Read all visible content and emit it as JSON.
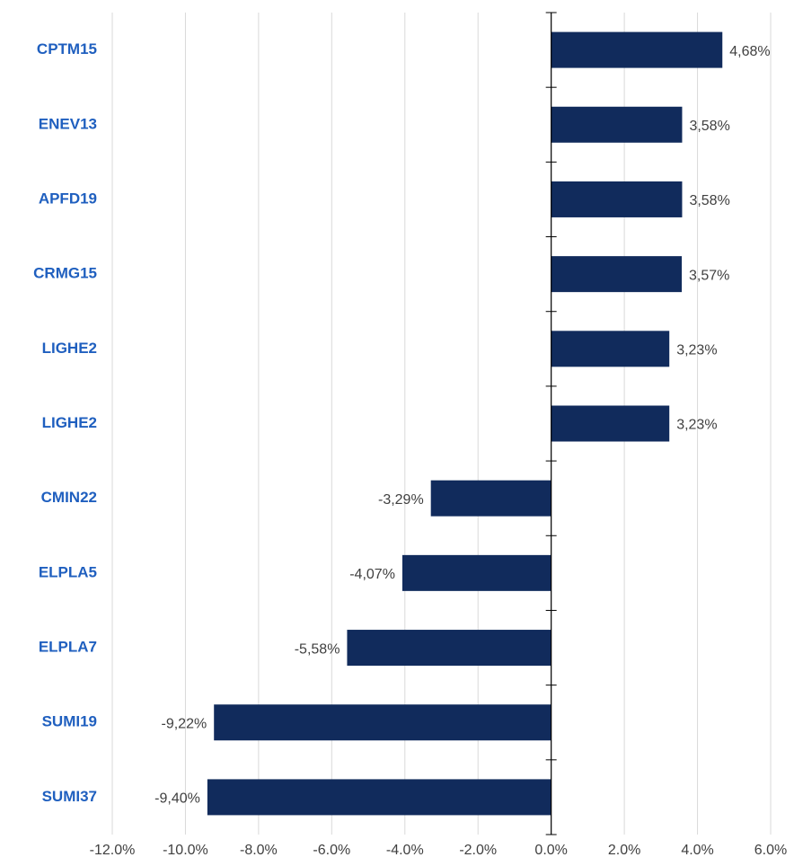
{
  "chart_data": {
    "type": "bar",
    "orientation": "horizontal",
    "categories": [
      "CPTM15",
      "ENEV13",
      "APFD19",
      "CRMG15",
      "LIGHE2",
      "LIGHE2",
      "CMIN22",
      "ELPLA5",
      "ELPLA7",
      "SUMI19",
      "SUMI37"
    ],
    "values": [
      4.68,
      3.58,
      3.58,
      3.57,
      3.23,
      3.23,
      -3.29,
      -4.07,
      -5.58,
      -9.22,
      -9.4
    ],
    "value_labels": [
      "4,68%",
      "3,58%",
      "3,58%",
      "3,57%",
      "3,23%",
      "3,23%",
      "-3,29%",
      "-4,07%",
      "-5,58%",
      "-9,22%",
      "-9,40%"
    ],
    "color": "#112b5c",
    "xlim": [
      -12,
      6
    ],
    "xticks": [
      {
        "value": -12,
        "label": "-12.0%"
      },
      {
        "value": -10,
        "label": "-10.0%"
      },
      {
        "value": -8,
        "label": "-8.0%"
      },
      {
        "value": -6,
        "label": "-6.0%"
      },
      {
        "value": -4,
        "label": "-4.0%"
      },
      {
        "value": -2,
        "label": "-2.0%"
      },
      {
        "value": 0,
        "label": "0.0%"
      },
      {
        "value": 2,
        "label": "2.0%"
      },
      {
        "value": 4,
        "label": "4.0%"
      },
      {
        "value": 6,
        "label": "6.0%"
      }
    ],
    "grid": true
  }
}
